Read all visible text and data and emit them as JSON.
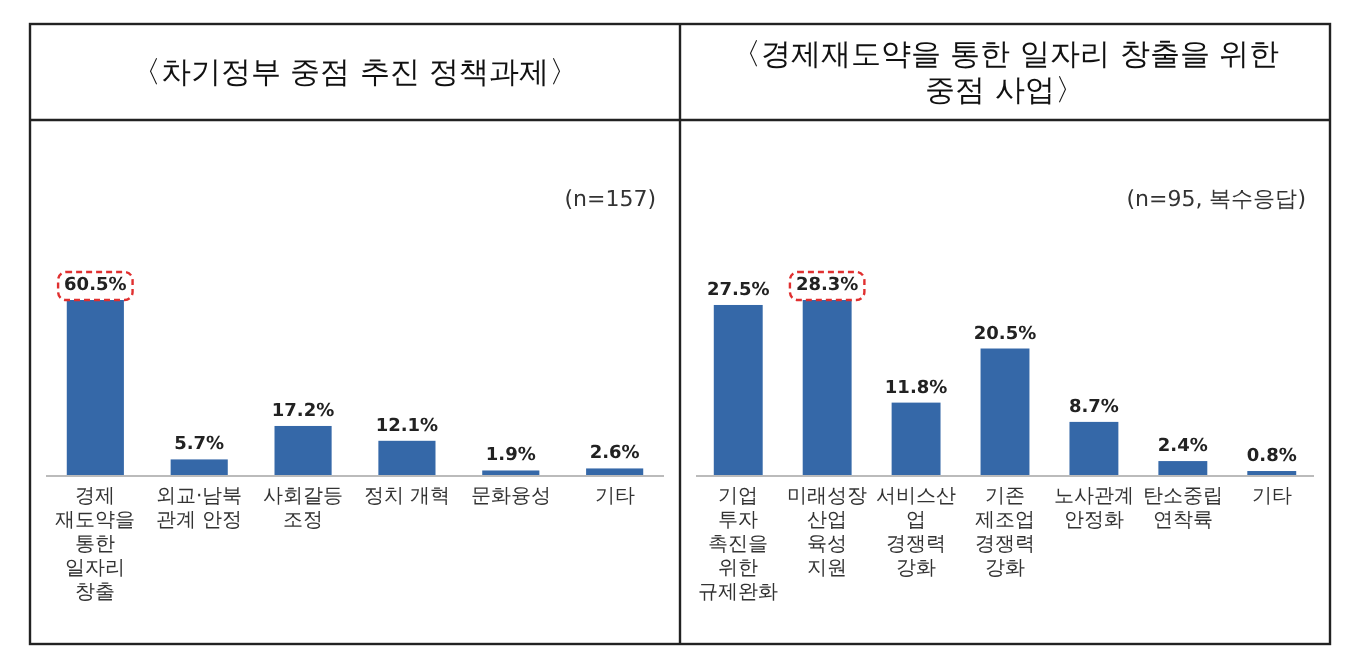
{
  "chart_data": [
    {
      "type": "bar",
      "title": "〈차기정부 중점 추진 정책과제〉",
      "annotations": [
        "(n=157)"
      ],
      "categories": [
        "경제 재도약을 통한 일자리 창출",
        "외교·남북관계 안정",
        "사회갈등 조정",
        "정치 개혁",
        "문화융성",
        "기타"
      ],
      "values": [
        60.5,
        5.7,
        17.2,
        12.1,
        1.9,
        2.6
      ],
      "value_labels": [
        "60.5%",
        "5.7%",
        "17.2%",
        "12.1%",
        "1.9%",
        "2.6%"
      ],
      "color": "#3568a8"
    },
    {
      "type": "bar",
      "title": "〈경제재도약을 통한 일자리 창출을 위한 중점 사업〉",
      "annotations": [
        "(n=95, 복수응답)"
      ],
      "categories": [
        "기업 투자 촉진을 위한 규제완화",
        "미래성장산업 육성 지원",
        "서비스산업 경쟁력 강화",
        "기존 제조업 경쟁력 강화",
        "노사관계 안정화",
        "탄소중립 연착륙",
        "기타"
      ],
      "values": [
        27.5,
        28.3,
        11.8,
        20.5,
        8.7,
        2.4,
        0.8
      ],
      "value_labels": [
        "27.5%",
        "28.3%",
        "11.8%",
        "20.5%",
        "8.7%",
        "2.4%",
        "0.8%"
      ],
      "color": "#3568a8"
    }
  ]
}
